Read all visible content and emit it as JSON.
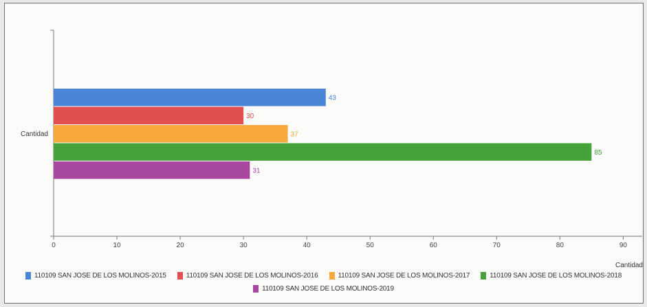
{
  "chart_data": {
    "type": "bar",
    "orientation": "horizontal",
    "categories": [
      "Cantidad"
    ],
    "series": [
      {
        "name": "110109 SAN JOSE DE LOS MOLINOS-2015",
        "values": [
          43
        ],
        "color": "#4a86d8"
      },
      {
        "name": "110109 SAN JOSE DE LOS MOLINOS-2016",
        "values": [
          30
        ],
        "color": "#e24f4f"
      },
      {
        "name": "110109 SAN JOSE DE LOS MOLINOS-2017",
        "values": [
          37
        ],
        "color": "#f7aa3b"
      },
      {
        "name": "110109 SAN JOSE DE LOS MOLINOS-2018",
        "values": [
          85
        ],
        "color": "#45a33a"
      },
      {
        "name": "110109 SAN JOSE DE LOS MOLINOS-2019",
        "values": [
          31
        ],
        "color": "#a8489f"
      }
    ],
    "title": "",
    "xlabel": "Cantidad",
    "ylabel": "",
    "xlim": [
      0,
      93
    ],
    "xticks": [
      0,
      10,
      20,
      30,
      40,
      50,
      60,
      70,
      80,
      90
    ],
    "grid": false,
    "legend_position": "bottom"
  }
}
